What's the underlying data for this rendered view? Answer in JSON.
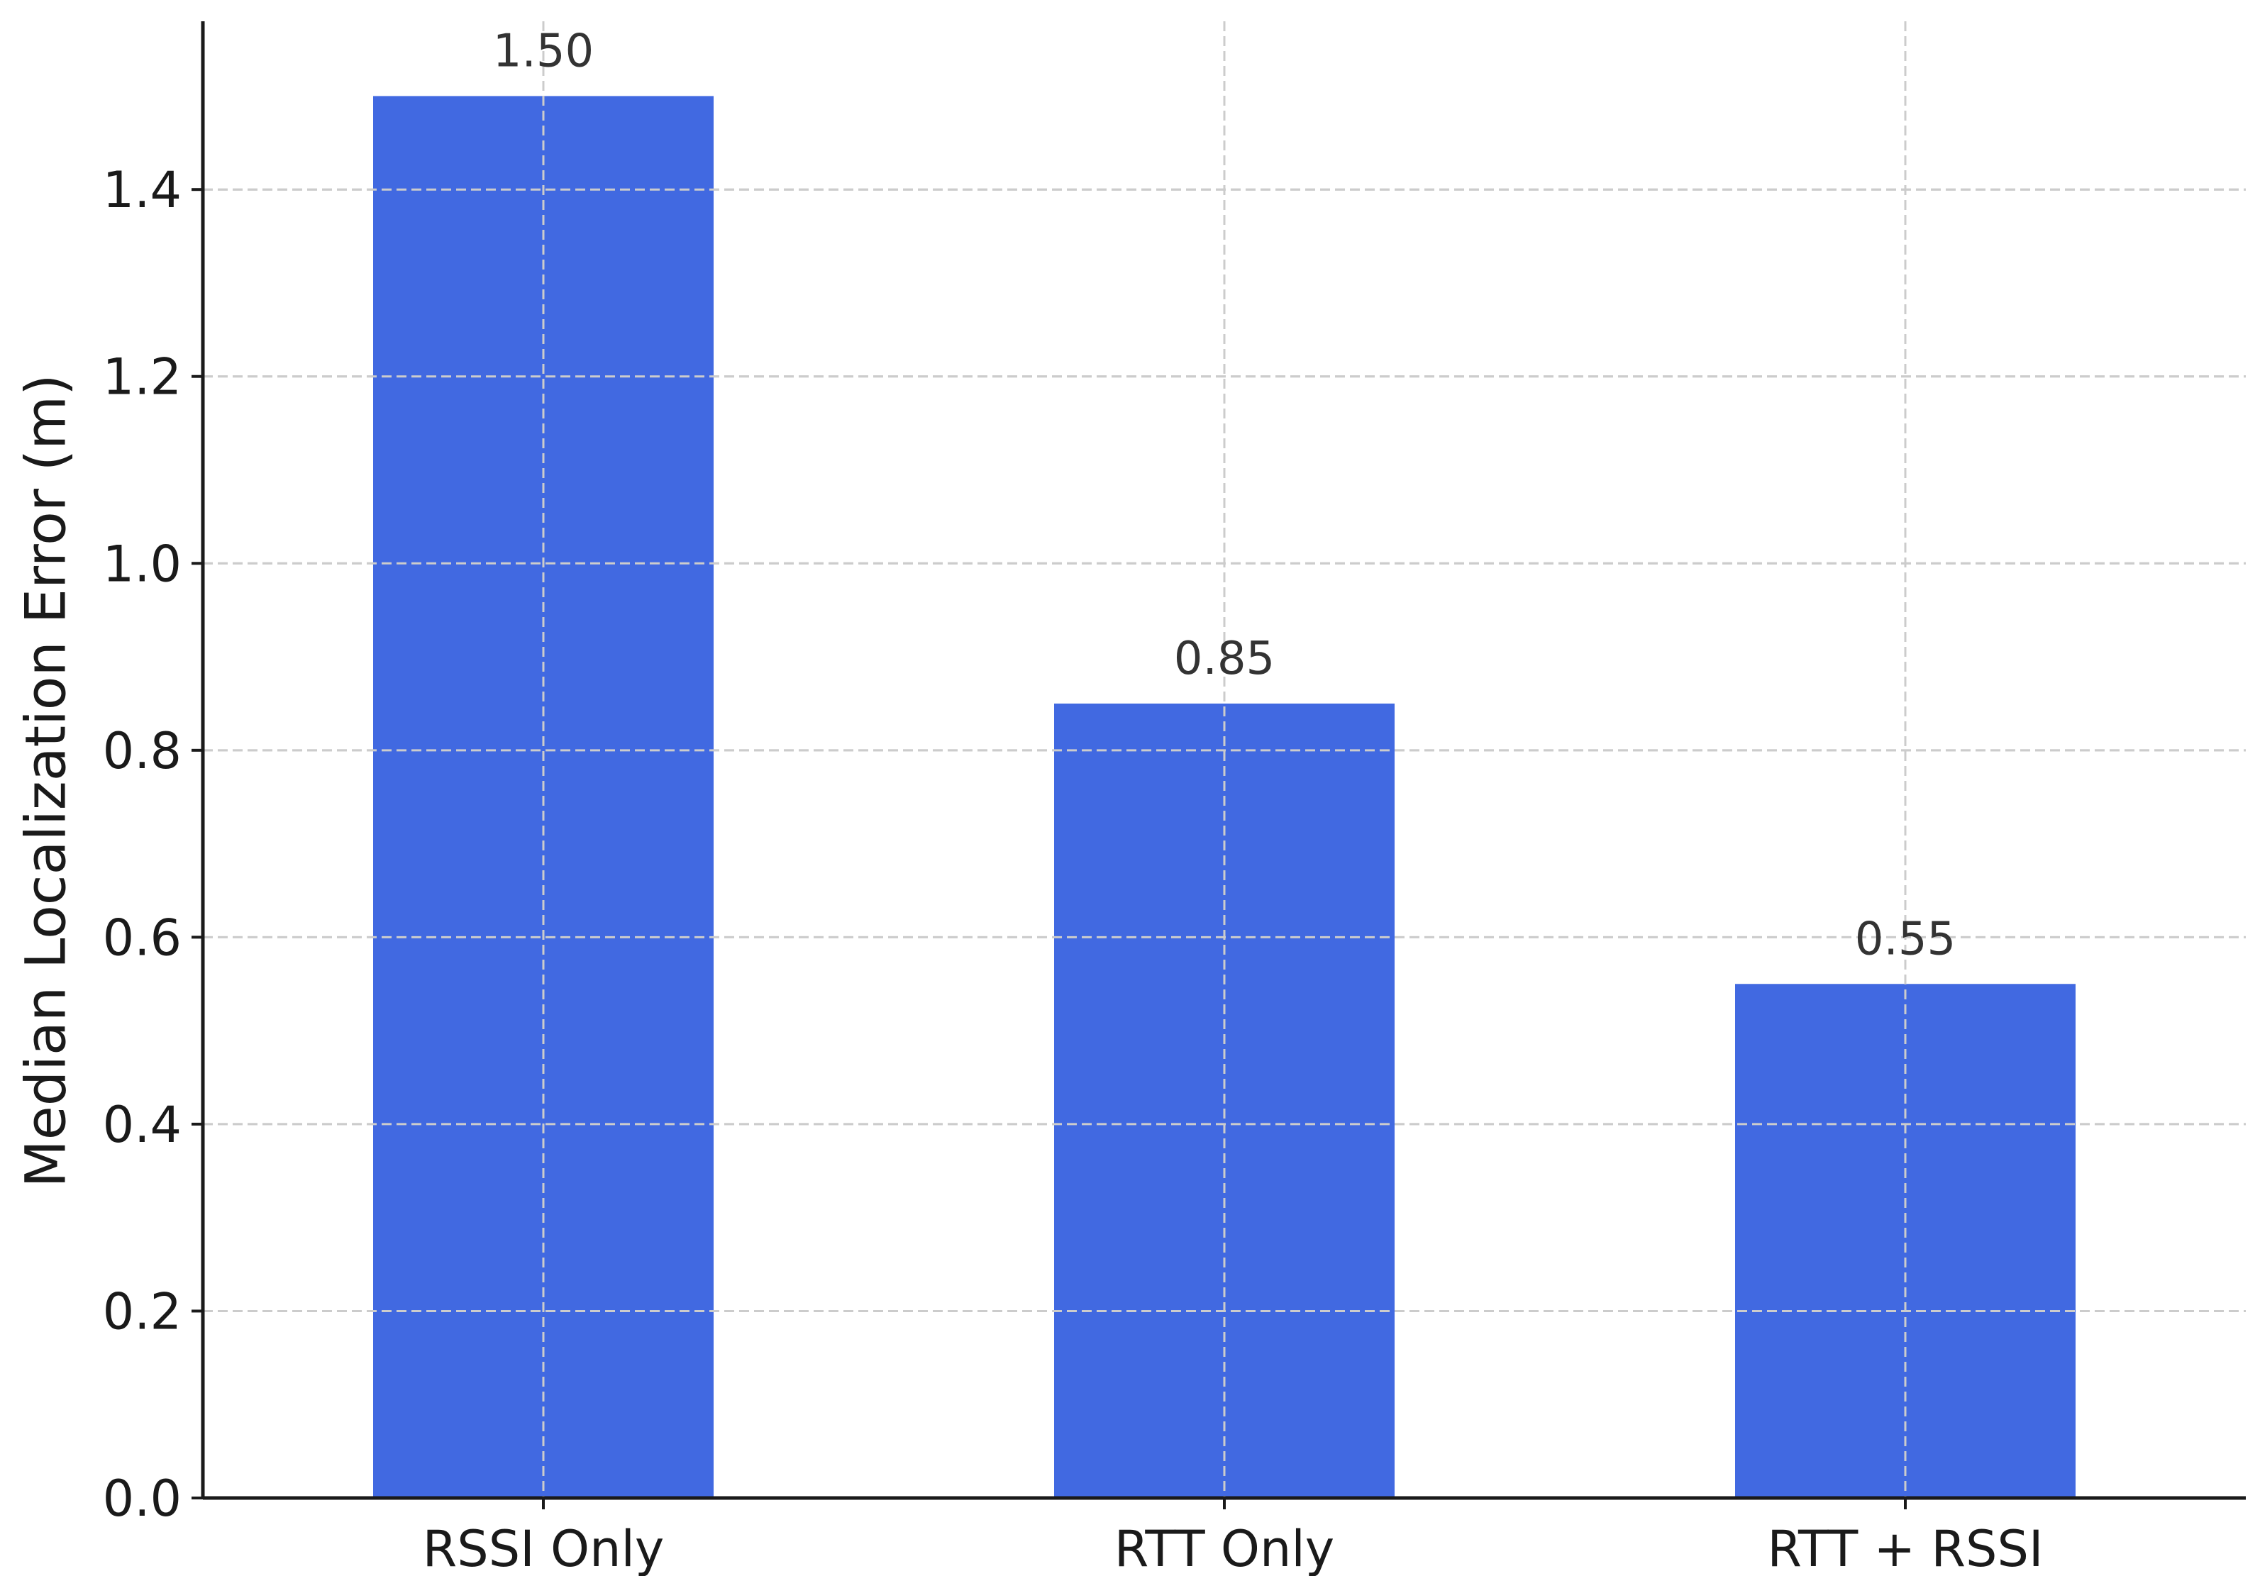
{
  "chart_data": {
    "type": "bar",
    "title": "",
    "xlabel": "",
    "ylabel": "Median Localization Error (m)",
    "categories": [
      "RSSI Only",
      "RTT Only",
      "RTT + RSSI"
    ],
    "values": [
      1.5,
      0.85,
      0.55
    ],
    "data_labels": [
      "1.50",
      "0.85",
      "0.55"
    ],
    "ylim": [
      0,
      1.58
    ],
    "yticks": [
      0.0,
      0.2,
      0.4,
      0.6,
      0.8,
      1.0,
      1.2,
      1.4
    ],
    "ytick_labels": [
      "0.0",
      "0.2",
      "0.4",
      "0.6",
      "0.8",
      "1.0",
      "1.2",
      "1.4"
    ],
    "grid": true,
    "bar_color": "#4169E1"
  }
}
